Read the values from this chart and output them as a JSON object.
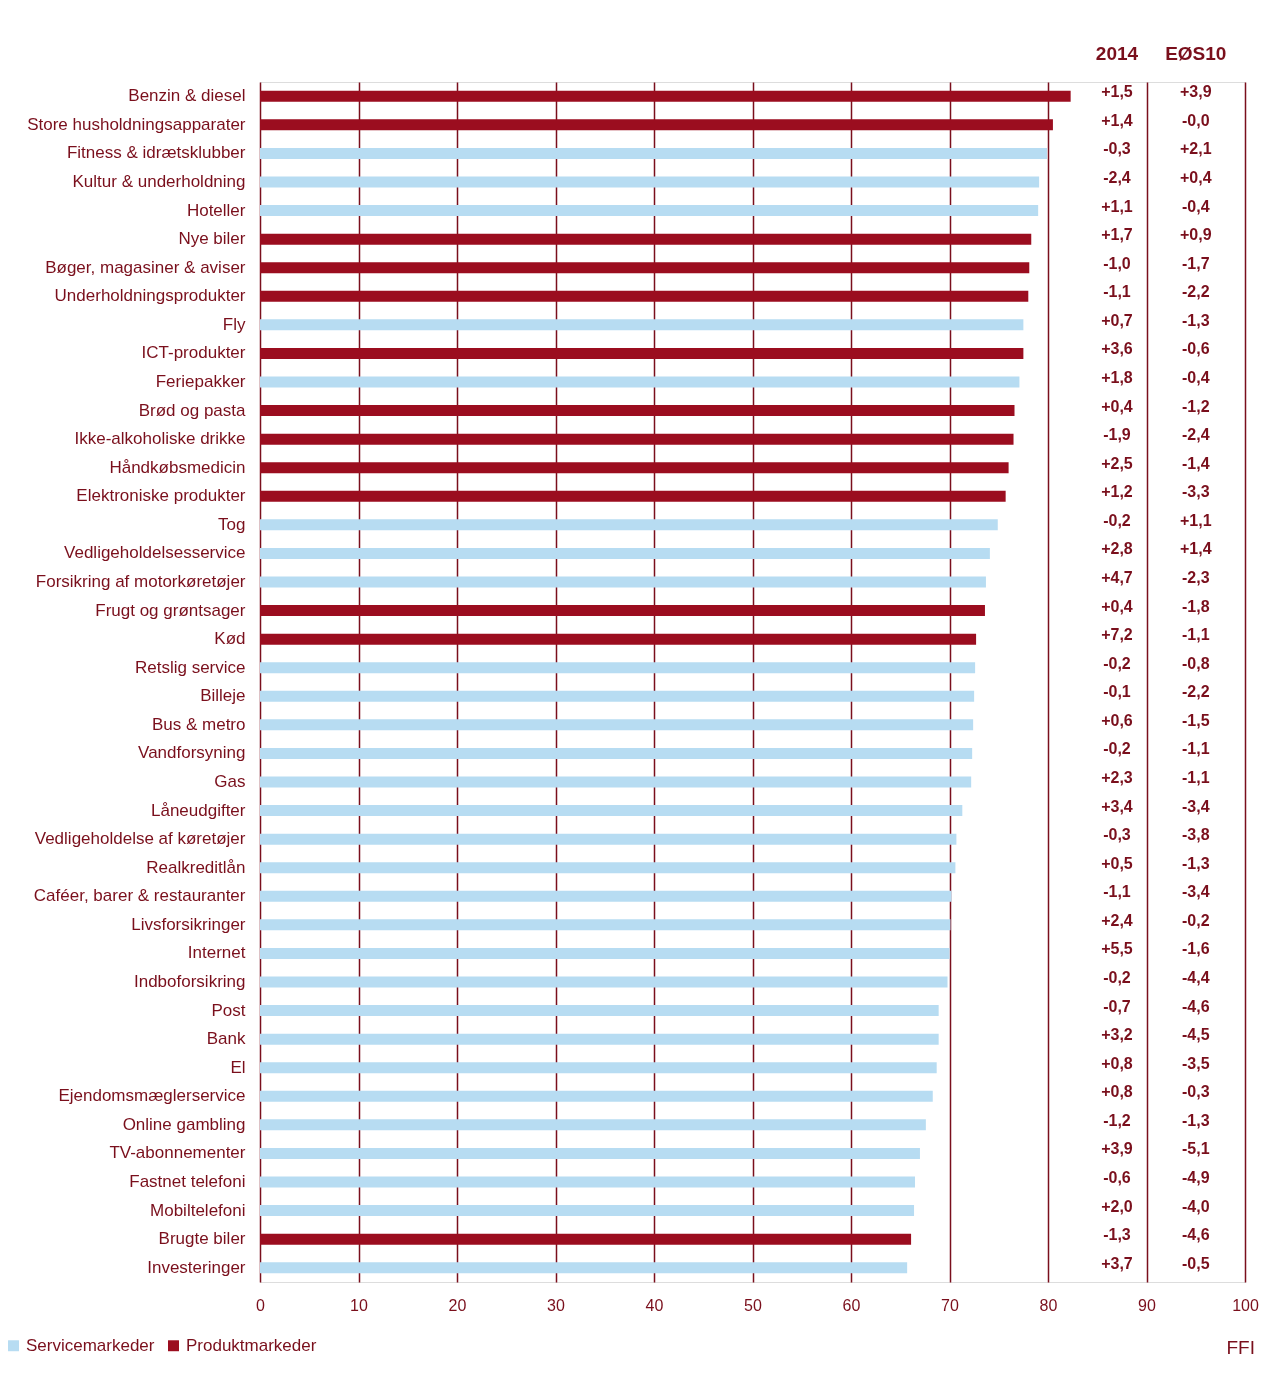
{
  "chart_data": {
    "type": "bar",
    "orientation": "horizontal",
    "categories": [
      "Benzin & diesel",
      "Store husholdningsapparater",
      "Fitness & idrætsklubber",
      "Kultur & underholdning",
      "Hoteller",
      "Nye biler",
      "Bøger, magasiner & aviser",
      "Underholdningsprodukter",
      "Fly",
      "ICT-produkter",
      "Feriepakker",
      "Brød og pasta",
      "Ikke-alkoholiske drikke",
      "Håndkøbsmedicin",
      "Elektroniske produkter",
      "Tog",
      "Vedligeholdelsesservice",
      "Forsikring af motorkøretøjer",
      "Frugt og grøntsager",
      "Kød",
      "Retslig  service",
      "Billeje",
      "Bus & metro",
      "Vandforsyning",
      "Gas",
      "Låneudgifter",
      "Vedligeholdelse af køretøjer",
      "Realkreditlån ",
      "Caféer, barer & restauranter",
      "Livsforsikringer",
      "Internet",
      "Indboforsikring",
      "Post",
      "Bank",
      "El",
      "Ejendomsmæglerservice",
      "Online gambling",
      "TV-abonnementer",
      "Fastnet telefoni",
      "Mobiltelefoni",
      "Brugte biler",
      "Investeringer"
    ],
    "series": [
      {
        "name": "Servicemarkeder",
        "color": "#b7dcf2",
        "values": [
          null,
          null,
          79.9,
          79.1,
          79.0,
          null,
          null,
          null,
          77.5,
          null,
          77.1,
          null,
          null,
          null,
          null,
          74.9,
          74.1,
          73.7,
          null,
          null,
          72.6,
          72.5,
          72.4,
          72.3,
          72.2,
          71.3,
          70.7,
          70.6,
          70.2,
          70.1,
          70.0,
          69.8,
          68.9,
          68.9,
          68.7,
          68.3,
          67.6,
          67.0,
          66.5,
          66.4,
          null,
          65.7
        ]
      },
      {
        "name": "Produktmarkeder",
        "color": "#9b0d1f",
        "values": [
          82.3,
          80.5,
          null,
          null,
          null,
          78.3,
          78.1,
          78.0,
          null,
          77.5,
          null,
          76.6,
          76.5,
          76.0,
          75.7,
          null,
          null,
          null,
          73.6,
          72.7,
          null,
          null,
          null,
          null,
          null,
          null,
          null,
          null,
          null,
          null,
          null,
          null,
          null,
          null,
          null,
          null,
          null,
          null,
          null,
          null,
          66.1,
          null
        ]
      }
    ],
    "xlim": [
      0,
      100
    ],
    "xticks": [
      0,
      10,
      20,
      30,
      40,
      50,
      60,
      70,
      80,
      90,
      100
    ],
    "grid": "x",
    "legend": "bottom left",
    "annotations": [
      "2014",
      "EØS10",
      "+1,5",
      "+3,9",
      "+1,4",
      "-0,0",
      "-0,3",
      "+2,1",
      "-2,4",
      "+0,4",
      "+1,1",
      "-0,4",
      "+1,7",
      "+0,9",
      "-1,0",
      "-1,7",
      "-1,1",
      "-2,2",
      "+0,7",
      "-1,3",
      "+3,6",
      "-0,6",
      "+1,8",
      "-0,4",
      "+0,4",
      "-1,2",
      "-1,9",
      "-2,4",
      "+2,5",
      "-1,4",
      "+1,2",
      "-3,3",
      "-0,2",
      "+1,1",
      "+2,8",
      "+1,4",
      "+4,7",
      "-2,3",
      "+0,4",
      "-1,8",
      "+7,2",
      "-1,1",
      "-0,2",
      "-0,8",
      "-0,1",
      "-2,2",
      "+0,6",
      "-1,5",
      "-0,2",
      "-1,1",
      "+2,3",
      "-1,1",
      "+3,4",
      "-3,4",
      "-0,3",
      "-3,8",
      "+0,5",
      "-1,3",
      "-1,1",
      "-3,4",
      "+2,4",
      "-0,2",
      "+5,5",
      "-1,6",
      "-0,2",
      "-4,4",
      "-0,7",
      "-4,6",
      "+3,2",
      "-4,5",
      "+0,8",
      "-3,5",
      "+0,8",
      "-0,3",
      "-1,2",
      "-1,3",
      "+3,9",
      "-5,1",
      "-0,6",
      "-4,9",
      "+2,0",
      "-4,0",
      "-1,3",
      "-4,6",
      "+3,7",
      "-0,5",
      "FFI"
    ]
  }
}
